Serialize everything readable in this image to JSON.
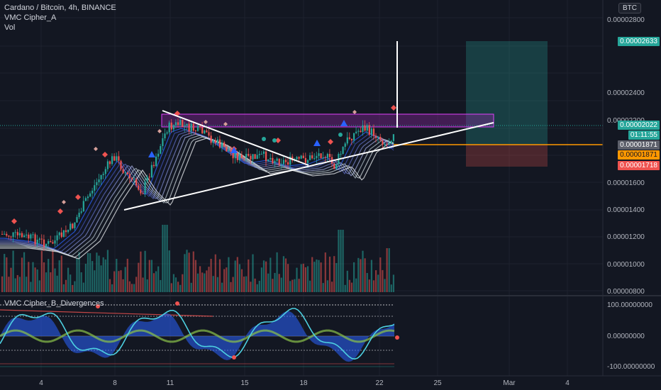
{
  "legend": {
    "symbol": "Cardano / Bitcoin, 4h, BINANCE",
    "indicator": "VMC Cipher_A",
    "volume": "Vol"
  },
  "oscillator": {
    "title": "VMC Cipher_B_Divergences"
  },
  "currency_badge": "BTC",
  "price_axis": {
    "labels": [
      "0.00002800",
      "0.00002400",
      "0.00002200",
      "0.00001600",
      "0.00001400",
      "0.00001200",
      "0.00001000",
      "0.00000800"
    ]
  },
  "price_tags": {
    "target": {
      "text": "0.00002633",
      "color": "#26a69a"
    },
    "last": {
      "text": "0.00002022",
      "color": "#26a69a"
    },
    "countdown": {
      "text": "01:11:55",
      "color": "#26a69a"
    },
    "entry_gray": {
      "text": "0.00001871",
      "color": "#5d606b"
    },
    "entry_orange": {
      "text": "0.00001871",
      "color": "#ff9800"
    },
    "stop": {
      "text": "0.00001718",
      "color": "#ef5350"
    }
  },
  "osc_axis": {
    "labels": [
      "100.00000000",
      "0.00000000",
      "-100.00000000"
    ]
  },
  "time_axis": {
    "labels": [
      "4",
      "8",
      "11",
      "15",
      "18",
      "22",
      "25",
      "Mar",
      "4"
    ]
  },
  "colors": {
    "bg": "#131722",
    "up": "#26a69a",
    "down": "#ef5350",
    "zone": "#9c27b0",
    "orange": "#ff9800",
    "white": "#ffffff"
  }
}
